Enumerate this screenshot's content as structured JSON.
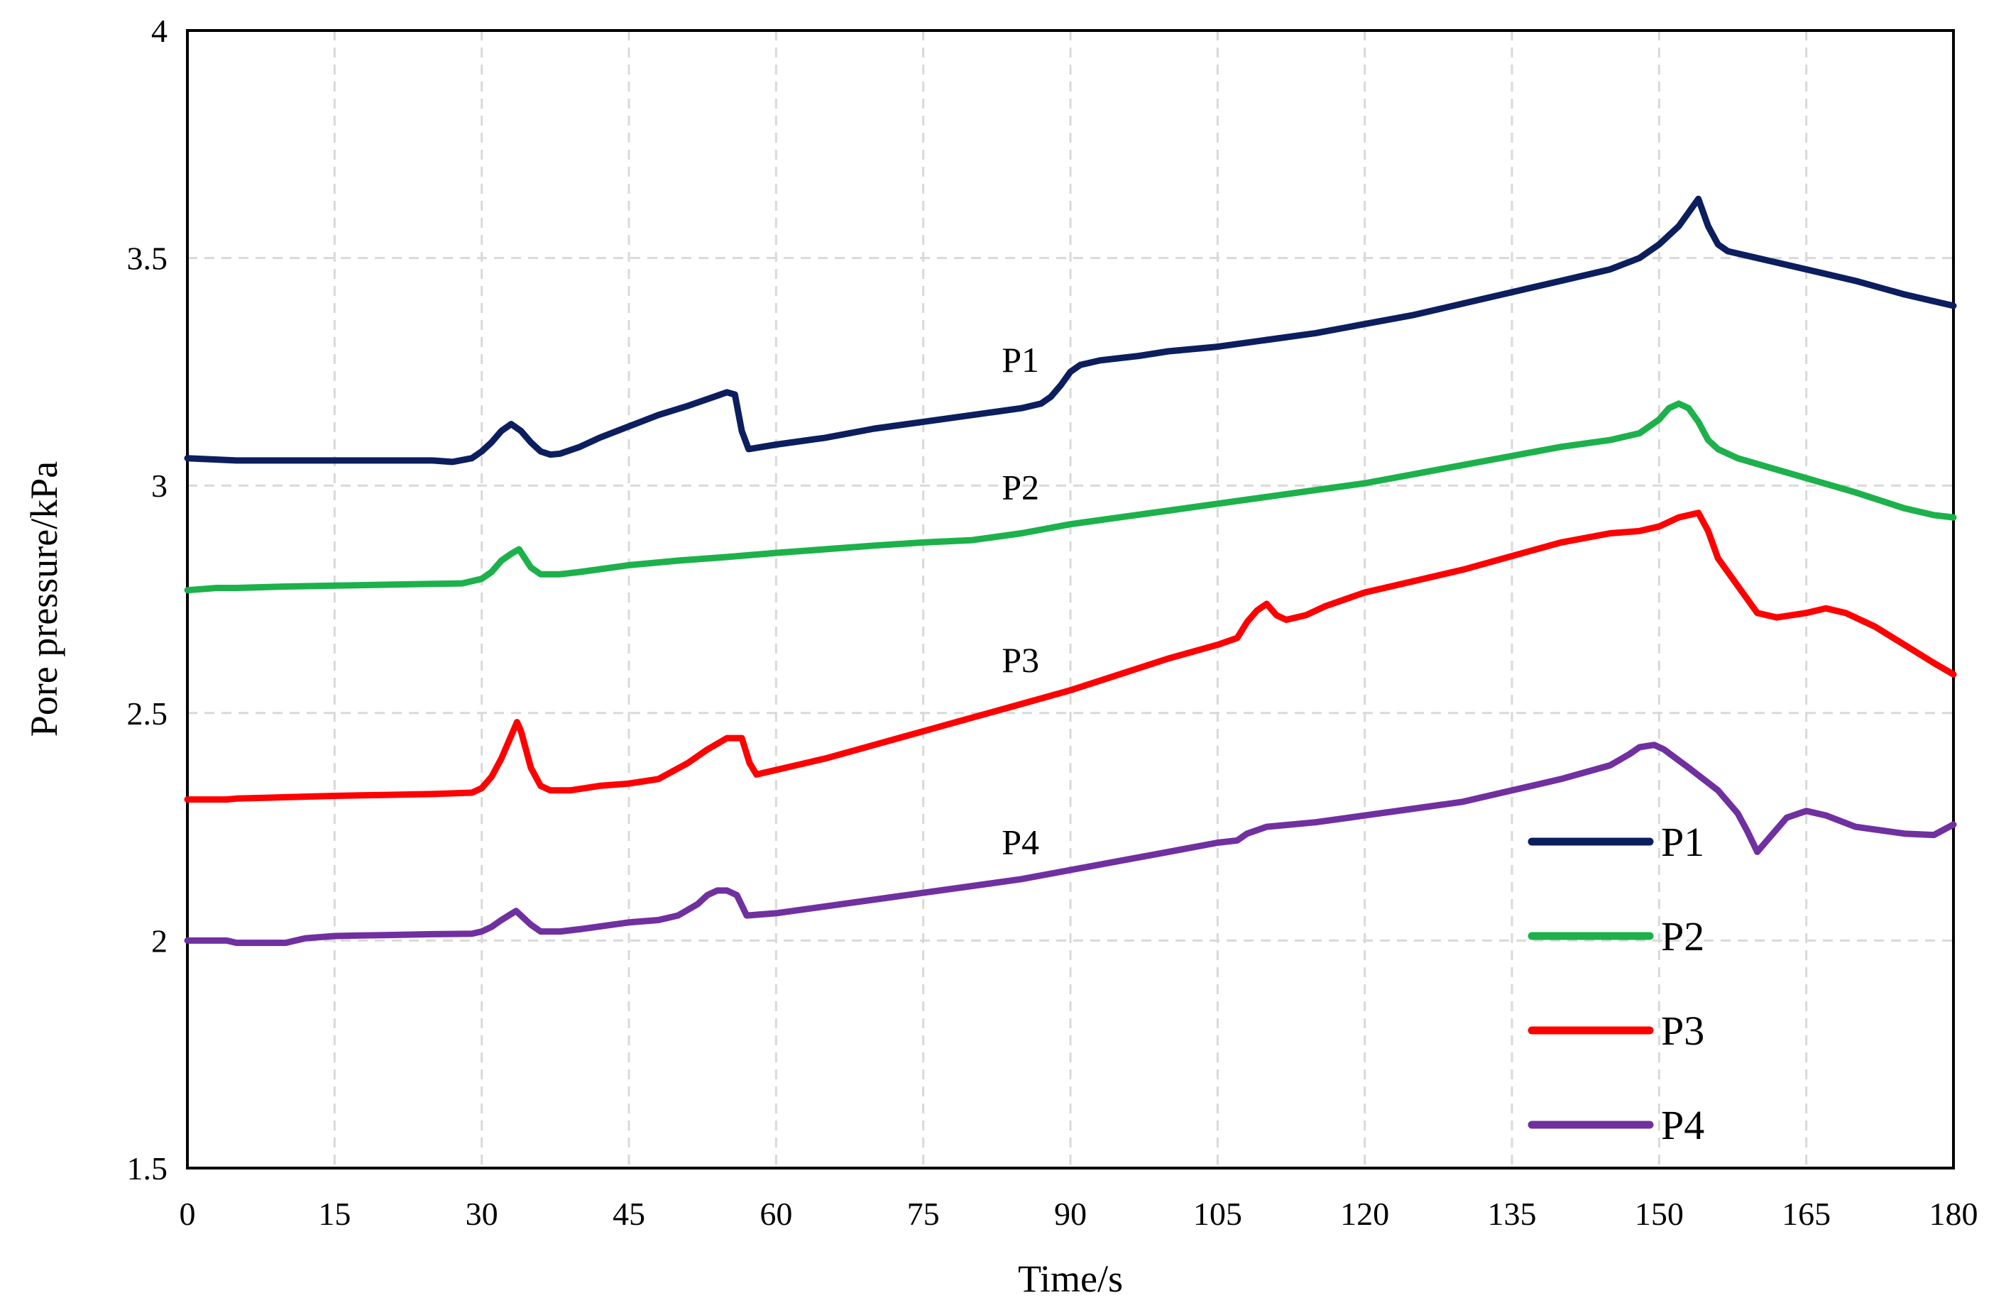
{
  "chart_data": {
    "type": "line",
    "title": "",
    "xlabel": "Time/s",
    "ylabel": "Pore pressure/kPa",
    "xlim": [
      0,
      180
    ],
    "ylim": [
      1.5,
      4
    ],
    "xticks": [
      0,
      15,
      30,
      45,
      60,
      75,
      90,
      105,
      120,
      135,
      150,
      165,
      180
    ],
    "yticks": [
      1.5,
      2,
      2.5,
      3,
      3.5,
      4
    ],
    "xtick_labels": [
      "0",
      "15",
      "30",
      "45",
      "60",
      "75",
      "90",
      "105",
      "120",
      "135",
      "150",
      "165",
      "180"
    ],
    "ytick_labels": [
      "1.5",
      "2",
      "2.5",
      "3",
      "3.5",
      "4"
    ],
    "grid": true,
    "legend_position": "bottom-right",
    "series": [
      {
        "name": "P1",
        "color": "#0c1e5e",
        "inline_label": "P1",
        "inline_label_at": [
          83,
          3.25
        ],
        "points": [
          [
            0,
            3.06
          ],
          [
            5,
            3.055
          ],
          [
            10,
            3.055
          ],
          [
            15,
            3.055
          ],
          [
            20,
            3.055
          ],
          [
            25,
            3.055
          ],
          [
            27,
            3.052
          ],
          [
            29,
            3.06
          ],
          [
            30,
            3.075
          ],
          [
            31,
            3.095
          ],
          [
            32,
            3.12
          ],
          [
            33,
            3.135
          ],
          [
            34,
            3.12
          ],
          [
            35,
            3.095
          ],
          [
            36,
            3.075
          ],
          [
            37,
            3.068
          ],
          [
            38,
            3.07
          ],
          [
            40,
            3.085
          ],
          [
            42,
            3.105
          ],
          [
            45,
            3.13
          ],
          [
            48,
            3.155
          ],
          [
            51,
            3.175
          ],
          [
            53,
            3.19
          ],
          [
            55,
            3.205
          ],
          [
            55.8,
            3.2
          ],
          [
            56.5,
            3.12
          ],
          [
            57.2,
            3.08
          ],
          [
            60,
            3.09
          ],
          [
            65,
            3.105
          ],
          [
            70,
            3.125
          ],
          [
            75,
            3.14
          ],
          [
            80,
            3.155
          ],
          [
            85,
            3.17
          ],
          [
            87,
            3.18
          ],
          [
            88,
            3.195
          ],
          [
            89,
            3.22
          ],
          [
            90,
            3.25
          ],
          [
            91,
            3.265
          ],
          [
            93,
            3.275
          ],
          [
            97,
            3.285
          ],
          [
            100,
            3.295
          ],
          [
            105,
            3.305
          ],
          [
            110,
            3.32
          ],
          [
            115,
            3.335
          ],
          [
            120,
            3.355
          ],
          [
            125,
            3.375
          ],
          [
            130,
            3.4
          ],
          [
            135,
            3.425
          ],
          [
            140,
            3.45
          ],
          [
            145,
            3.475
          ],
          [
            148,
            3.5
          ],
          [
            150,
            3.53
          ],
          [
            152,
            3.57
          ],
          [
            153,
            3.6
          ],
          [
            154,
            3.63
          ],
          [
            155,
            3.57
          ],
          [
            156,
            3.53
          ],
          [
            157,
            3.515
          ],
          [
            160,
            3.5
          ],
          [
            165,
            3.475
          ],
          [
            170,
            3.45
          ],
          [
            175,
            3.42
          ],
          [
            180,
            3.395
          ]
        ]
      },
      {
        "name": "P2",
        "color": "#1db14b",
        "inline_label": "P2",
        "inline_label_at": [
          83,
          2.97
        ],
        "points": [
          [
            0,
            2.77
          ],
          [
            3,
            2.775
          ],
          [
            5,
            2.775
          ],
          [
            10,
            2.778
          ],
          [
            15,
            2.78
          ],
          [
            20,
            2.782
          ],
          [
            25,
            2.784
          ],
          [
            28,
            2.785
          ],
          [
            30,
            2.795
          ],
          [
            31,
            2.81
          ],
          [
            32,
            2.835
          ],
          [
            33,
            2.85
          ],
          [
            33.8,
            2.86
          ],
          [
            35,
            2.82
          ],
          [
            36,
            2.805
          ],
          [
            38,
            2.805
          ],
          [
            40,
            2.81
          ],
          [
            45,
            2.825
          ],
          [
            50,
            2.835
          ],
          [
            55,
            2.843
          ],
          [
            60,
            2.852
          ],
          [
            65,
            2.86
          ],
          [
            70,
            2.868
          ],
          [
            75,
            2.875
          ],
          [
            80,
            2.88
          ],
          [
            85,
            2.895
          ],
          [
            90,
            2.915
          ],
          [
            95,
            2.93
          ],
          [
            100,
            2.945
          ],
          [
            105,
            2.96
          ],
          [
            110,
            2.975
          ],
          [
            115,
            2.99
          ],
          [
            120,
            3.005
          ],
          [
            125,
            3.025
          ],
          [
            130,
            3.045
          ],
          [
            135,
            3.065
          ],
          [
            140,
            3.085
          ],
          [
            145,
            3.1
          ],
          [
            148,
            3.115
          ],
          [
            150,
            3.145
          ],
          [
            151,
            3.17
          ],
          [
            152,
            3.18
          ],
          [
            153,
            3.17
          ],
          [
            154,
            3.14
          ],
          [
            155,
            3.1
          ],
          [
            156,
            3.08
          ],
          [
            158,
            3.06
          ],
          [
            162,
            3.035
          ],
          [
            166,
            3.01
          ],
          [
            170,
            2.985
          ],
          [
            175,
            2.95
          ],
          [
            178,
            2.935
          ],
          [
            180,
            2.93
          ]
        ]
      },
      {
        "name": "P3",
        "color": "#ff0000",
        "inline_label": "P3",
        "inline_label_at": [
          83,
          2.59
        ],
        "points": [
          [
            0,
            2.31
          ],
          [
            4,
            2.31
          ],
          [
            5,
            2.312
          ],
          [
            10,
            2.315
          ],
          [
            15,
            2.318
          ],
          [
            20,
            2.32
          ],
          [
            25,
            2.322
          ],
          [
            29,
            2.325
          ],
          [
            30,
            2.335
          ],
          [
            31,
            2.36
          ],
          [
            32,
            2.4
          ],
          [
            33,
            2.45
          ],
          [
            33.6,
            2.48
          ],
          [
            34,
            2.46
          ],
          [
            35,
            2.38
          ],
          [
            36,
            2.34
          ],
          [
            37,
            2.33
          ],
          [
            39,
            2.33
          ],
          [
            42,
            2.34
          ],
          [
            45,
            2.345
          ],
          [
            48,
            2.355
          ],
          [
            51,
            2.39
          ],
          [
            53,
            2.42
          ],
          [
            55,
            2.445
          ],
          [
            56.5,
            2.445
          ],
          [
            57.3,
            2.39
          ],
          [
            58,
            2.365
          ],
          [
            60,
            2.375
          ],
          [
            65,
            2.4
          ],
          [
            70,
            2.43
          ],
          [
            75,
            2.46
          ],
          [
            80,
            2.49
          ],
          [
            85,
            2.52
          ],
          [
            90,
            2.55
          ],
          [
            95,
            2.585
          ],
          [
            100,
            2.62
          ],
          [
            105,
            2.65
          ],
          [
            107,
            2.665
          ],
          [
            108,
            2.7
          ],
          [
            109,
            2.725
          ],
          [
            110,
            2.74
          ],
          [
            111,
            2.715
          ],
          [
            112,
            2.705
          ],
          [
            114,
            2.715
          ],
          [
            116,
            2.735
          ],
          [
            120,
            2.765
          ],
          [
            125,
            2.79
          ],
          [
            130,
            2.815
          ],
          [
            135,
            2.845
          ],
          [
            140,
            2.875
          ],
          [
            145,
            2.895
          ],
          [
            148,
            2.9
          ],
          [
            150,
            2.91
          ],
          [
            152,
            2.93
          ],
          [
            154,
            2.94
          ],
          [
            155,
            2.9
          ],
          [
            156,
            2.84
          ],
          [
            158,
            2.78
          ],
          [
            160,
            2.72
          ],
          [
            162,
            2.71
          ],
          [
            165,
            2.72
          ],
          [
            167,
            2.73
          ],
          [
            169,
            2.72
          ],
          [
            172,
            2.69
          ],
          [
            175,
            2.65
          ],
          [
            178,
            2.61
          ],
          [
            180,
            2.585
          ]
        ]
      },
      {
        "name": "P4",
        "color": "#7030a0",
        "inline_label": "P4",
        "inline_label_at": [
          83,
          2.19
        ],
        "points": [
          [
            0,
            2.0
          ],
          [
            4,
            2.0
          ],
          [
            5,
            1.995
          ],
          [
            10,
            1.995
          ],
          [
            12,
            2.005
          ],
          [
            15,
            2.01
          ],
          [
            20,
            2.012
          ],
          [
            25,
            2.014
          ],
          [
            29,
            2.015
          ],
          [
            30,
            2.02
          ],
          [
            31,
            2.03
          ],
          [
            32,
            2.045
          ],
          [
            33.5,
            2.065
          ],
          [
            35,
            2.035
          ],
          [
            36,
            2.02
          ],
          [
            38,
            2.02
          ],
          [
            40,
            2.025
          ],
          [
            45,
            2.04
          ],
          [
            48,
            2.045
          ],
          [
            50,
            2.055
          ],
          [
            52,
            2.08
          ],
          [
            53,
            2.1
          ],
          [
            54,
            2.11
          ],
          [
            55,
            2.11
          ],
          [
            56,
            2.1
          ],
          [
            57,
            2.055
          ],
          [
            60,
            2.06
          ],
          [
            65,
            2.075
          ],
          [
            70,
            2.09
          ],
          [
            75,
            2.105
          ],
          [
            80,
            2.12
          ],
          [
            85,
            2.135
          ],
          [
            90,
            2.155
          ],
          [
            95,
            2.175
          ],
          [
            100,
            2.195
          ],
          [
            105,
            2.215
          ],
          [
            107,
            2.22
          ],
          [
            108,
            2.235
          ],
          [
            110,
            2.25
          ],
          [
            115,
            2.26
          ],
          [
            120,
            2.275
          ],
          [
            125,
            2.29
          ],
          [
            130,
            2.305
          ],
          [
            135,
            2.33
          ],
          [
            140,
            2.355
          ],
          [
            145,
            2.385
          ],
          [
            147,
            2.41
          ],
          [
            148,
            2.425
          ],
          [
            149.5,
            2.43
          ],
          [
            150.5,
            2.42
          ],
          [
            153,
            2.38
          ],
          [
            156,
            2.33
          ],
          [
            158,
            2.28
          ],
          [
            159,
            2.24
          ],
          [
            160,
            2.195
          ],
          [
            161,
            2.22
          ],
          [
            162,
            2.245
          ],
          [
            163,
            2.27
          ],
          [
            165,
            2.285
          ],
          [
            167,
            2.275
          ],
          [
            170,
            2.25
          ],
          [
            175,
            2.235
          ],
          [
            178,
            2.232
          ],
          [
            180,
            2.255
          ]
        ]
      }
    ],
    "legend": [
      "P1",
      "P2",
      "P3",
      "P4"
    ]
  }
}
